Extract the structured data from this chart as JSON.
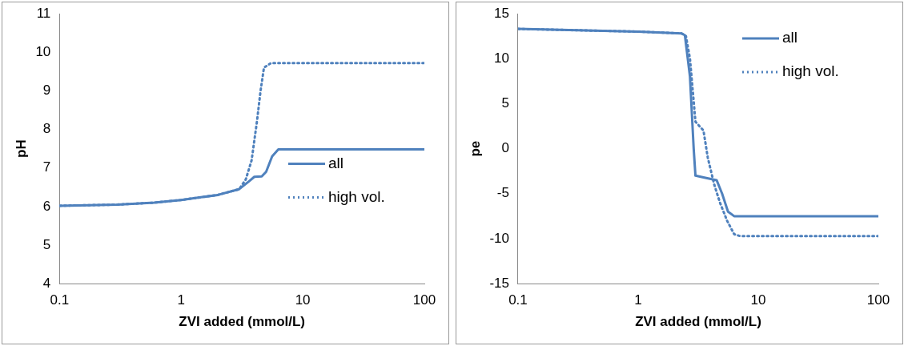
{
  "chart_data": [
    {
      "type": "line",
      "xlabel": "ZVI added (mmol/L)",
      "ylabel": "pH",
      "log": "x",
      "xlim": [
        0.1,
        100
      ],
      "xticks": [
        0.1,
        1,
        10,
        100
      ],
      "ylim": [
        4,
        11
      ],
      "yticks": [
        4,
        5,
        6,
        7,
        8,
        9,
        10,
        11
      ],
      "grid": false,
      "legend": "right",
      "marker": "none",
      "series": [
        {
          "name": "all",
          "color": "#4f81bd",
          "line_style": "solid",
          "x": [
            0.1,
            0.3,
            0.6,
            1,
            2,
            3,
            3.6,
            4,
            4.6,
            5,
            5.6,
            6.3,
            100
          ],
          "values": [
            6.02,
            6.05,
            6.1,
            6.17,
            6.3,
            6.45,
            6.65,
            6.77,
            6.78,
            6.9,
            7.3,
            7.48,
            7.48
          ]
        },
        {
          "name": "high vol.",
          "color": "#4f81bd",
          "line_style": "dotted",
          "x": [
            0.1,
            0.3,
            0.6,
            1,
            2,
            3,
            3.4,
            3.8,
            4.2,
            4.5,
            4.8,
            5.5,
            100
          ],
          "values": [
            6.02,
            6.05,
            6.1,
            6.17,
            6.3,
            6.45,
            6.7,
            7.2,
            8.2,
            9.0,
            9.6,
            9.72,
            9.72
          ]
        }
      ]
    },
    {
      "type": "line",
      "xlabel": "ZVI added (mmol/L)",
      "ylabel": "pe",
      "log": "x",
      "xlim": [
        0.1,
        100
      ],
      "xticks": [
        0.1,
        1,
        10,
        100
      ],
      "ylim": [
        -15,
        15
      ],
      "yticks": [
        -15,
        -10,
        -5,
        0,
        5,
        10,
        15
      ],
      "grid": false,
      "legend": "top right",
      "marker": "none",
      "series": [
        {
          "name": "all",
          "color": "#4f81bd",
          "line_style": "solid",
          "x": [
            0.1,
            1,
            2.3,
            2.45,
            2.7,
            2.9,
            3.0,
            3.5,
            4.5,
            5,
            5.6,
            6.3,
            100
          ],
          "values": [
            13.3,
            13.0,
            12.8,
            12.6,
            8,
            0,
            -3,
            -3.2,
            -3.5,
            -5,
            -7,
            -7.5,
            -7.5
          ]
        },
        {
          "name": "high vol.",
          "color": "#4f81bd",
          "line_style": "dotted",
          "x": [
            0.1,
            1,
            2.3,
            2.5,
            2.7,
            3.0,
            3.5,
            3.8,
            4.3,
            4.8,
            5.5,
            6.3,
            7,
            100
          ],
          "values": [
            13.3,
            13.0,
            12.8,
            12.5,
            10,
            3,
            2,
            -1,
            -4,
            -6,
            -8,
            -9.5,
            -9.7,
            -9.7
          ]
        }
      ]
    }
  ]
}
